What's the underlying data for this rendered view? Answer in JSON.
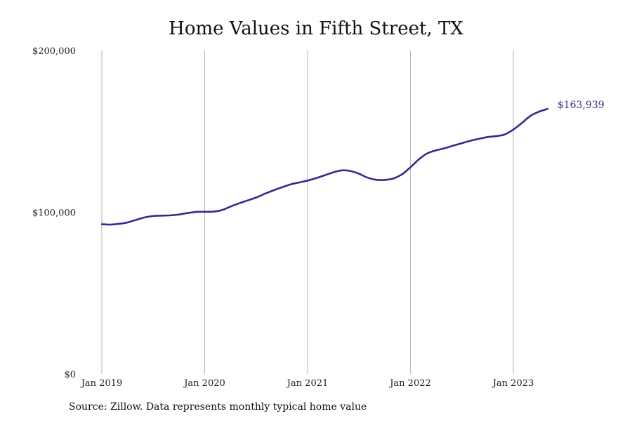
{
  "chart_data": {
    "type": "line",
    "title": "Home Values in Fifth Street, TX",
    "xlabel": "",
    "ylabel": "",
    "ylim": [
      0,
      200000
    ],
    "y_ticks": [
      {
        "value": 0,
        "label": "$0"
      },
      {
        "value": 100000,
        "label": "$100,000"
      },
      {
        "value": 200000,
        "label": "$200,000"
      }
    ],
    "x_ticks": [
      {
        "value": "2019-01",
        "label": "Jan 2019"
      },
      {
        "value": "2020-01",
        "label": "Jan 2020"
      },
      {
        "value": "2021-01",
        "label": "Jan 2021"
      },
      {
        "value": "2022-01",
        "label": "Jan 2022"
      },
      {
        "value": "2023-01",
        "label": "Jan 2023"
      }
    ],
    "grid": "vertical",
    "color": "#2e2d8f",
    "series": [
      {
        "x": [
          "2019-01",
          "2019-02",
          "2019-03",
          "2019-04",
          "2019-05",
          "2019-06",
          "2019-07",
          "2019-08",
          "2019-09",
          "2019-10",
          "2019-11",
          "2019-12",
          "2020-01",
          "2020-02",
          "2020-03",
          "2020-04",
          "2020-05",
          "2020-06",
          "2020-07",
          "2020-08",
          "2020-09",
          "2020-10",
          "2020-11",
          "2020-12",
          "2021-01",
          "2021-02",
          "2021-03",
          "2021-04",
          "2021-05",
          "2021-06",
          "2021-07",
          "2021-08",
          "2021-09",
          "2021-10",
          "2021-11",
          "2021-12",
          "2022-01",
          "2022-02",
          "2022-03",
          "2022-04",
          "2022-05",
          "2022-06",
          "2022-07",
          "2022-08",
          "2022-09",
          "2022-10",
          "2022-11",
          "2022-12",
          "2023-01",
          "2023-02",
          "2023-03",
          "2023-04",
          "2023-05"
        ],
        "values": [
          92600,
          92400,
          92800,
          93700,
          95300,
          96800,
          97700,
          97900,
          98100,
          98600,
          99500,
          100200,
          100300,
          100400,
          101300,
          103500,
          105500,
          107300,
          109100,
          111400,
          113500,
          115400,
          117200,
          118400,
          119600,
          121100,
          122900,
          124700,
          125900,
          125500,
          123800,
          121400,
          120100,
          120000,
          120900,
          123400,
          127800,
          132800,
          136500,
          138300,
          139600,
          141200,
          142700,
          144200,
          145400,
          146500,
          147100,
          148100,
          151100,
          155200,
          159600,
          162200,
          163939
        ]
      }
    ],
    "end_label": "$163,939"
  },
  "source": "Source: Zillow. Data represents monthly typical home value"
}
